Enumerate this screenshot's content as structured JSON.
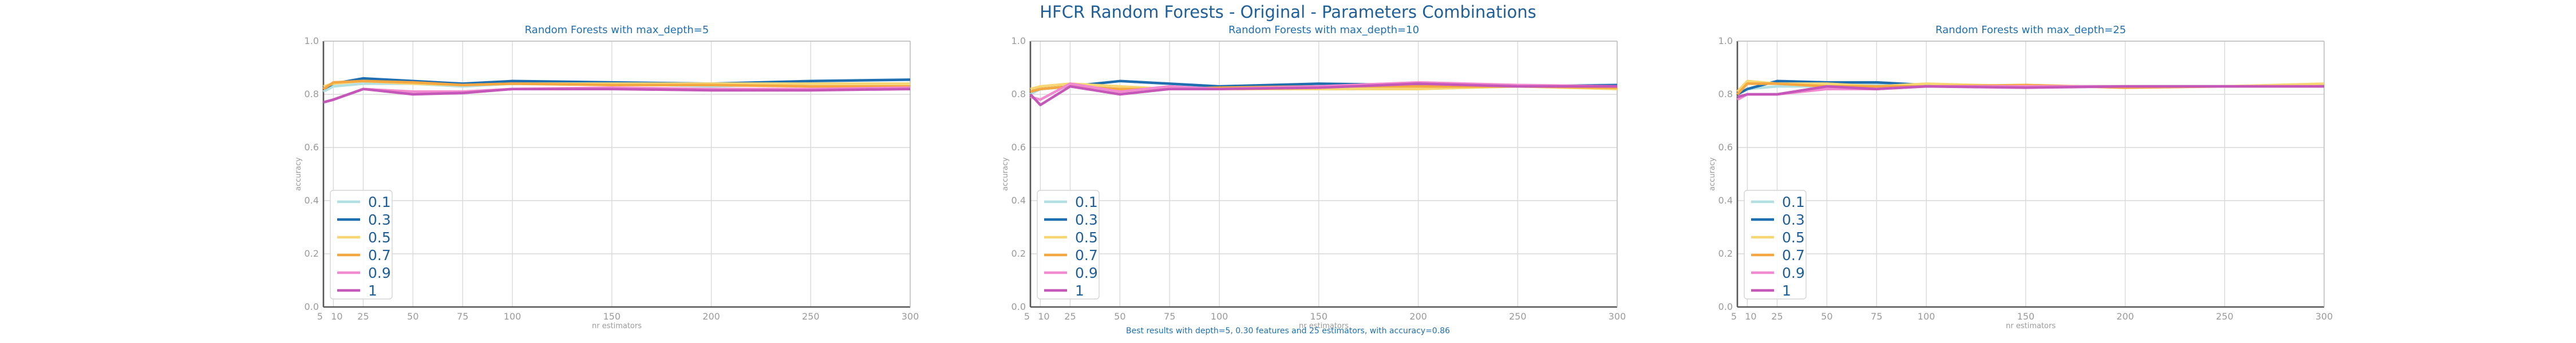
{
  "figure": {
    "title": "HFCR Random Forests - Original - Parameters Combinations",
    "footnote": "Best results with depth=5, 0.30 features and 25 estimators, with accuracy=0.86"
  },
  "colors": [
    "#b3dfe0",
    "#1f6fb0",
    "#f7d774",
    "#f5a742",
    "#f28ad0",
    "#c457b8"
  ],
  "chart_data": [
    {
      "type": "line",
      "title": "Random Forests with max_depth=5",
      "xlabel": "nr estimators",
      "ylabel": "accuracy",
      "x": [
        5,
        10,
        25,
        50,
        75,
        100,
        150,
        200,
        250,
        300
      ],
      "xticks": [
        "5",
        "10",
        "25",
        "50",
        "75",
        "100",
        "150",
        "200",
        "250",
        "300"
      ],
      "ylim": [
        0,
        1
      ],
      "yticks": [
        "0.0",
        "0.2",
        "0.4",
        "0.6",
        "0.8",
        "1.0"
      ],
      "grid": true,
      "legend": "bottom-left",
      "series": [
        {
          "name": "0.1",
          "values": [
            0.81,
            0.83,
            0.84,
            0.84,
            0.83,
            0.84,
            0.84,
            0.83,
            0.84,
            0.84
          ]
        },
        {
          "name": "0.3",
          "values": [
            0.82,
            0.84,
            0.86,
            0.85,
            0.84,
            0.85,
            0.845,
            0.84,
            0.85,
            0.855
          ]
        },
        {
          "name": "0.5",
          "values": [
            0.83,
            0.84,
            0.85,
            0.84,
            0.835,
            0.84,
            0.84,
            0.84,
            0.84,
            0.84
          ]
        },
        {
          "name": "0.7",
          "values": [
            0.82,
            0.845,
            0.85,
            0.845,
            0.835,
            0.84,
            0.835,
            0.835,
            0.83,
            0.83
          ]
        },
        {
          "name": "0.9",
          "values": [
            0.77,
            0.78,
            0.82,
            0.81,
            0.81,
            0.82,
            0.825,
            0.82,
            0.82,
            0.825
          ]
        },
        {
          "name": "1",
          "values": [
            0.77,
            0.78,
            0.82,
            0.8,
            0.805,
            0.82,
            0.82,
            0.815,
            0.815,
            0.82
          ]
        }
      ]
    },
    {
      "type": "line",
      "title": "Random Forests with max_depth=10",
      "xlabel": "nr estimators",
      "ylabel": "accuracy",
      "x": [
        5,
        10,
        25,
        50,
        75,
        100,
        150,
        200,
        250,
        300
      ],
      "xticks": [
        "5",
        "10",
        "25",
        "50",
        "75",
        "100",
        "150",
        "200",
        "250",
        "300"
      ],
      "ylim": [
        0,
        1
      ],
      "yticks": [
        "0.0",
        "0.2",
        "0.4",
        "0.6",
        "0.8",
        "1.0"
      ],
      "grid": true,
      "legend": "bottom-left",
      "series": [
        {
          "name": "0.1",
          "values": [
            0.8,
            0.82,
            0.83,
            0.82,
            0.82,
            0.83,
            0.83,
            0.84,
            0.83,
            0.83
          ]
        },
        {
          "name": "0.3",
          "values": [
            0.81,
            0.82,
            0.83,
            0.85,
            0.84,
            0.83,
            0.84,
            0.835,
            0.83,
            0.835
          ]
        },
        {
          "name": "0.5",
          "values": [
            0.82,
            0.83,
            0.84,
            0.83,
            0.82,
            0.82,
            0.82,
            0.82,
            0.83,
            0.82
          ]
        },
        {
          "name": "0.7",
          "values": [
            0.81,
            0.82,
            0.83,
            0.82,
            0.82,
            0.825,
            0.83,
            0.83,
            0.83,
            0.825
          ]
        },
        {
          "name": "0.9",
          "values": [
            0.79,
            0.78,
            0.84,
            0.81,
            0.83,
            0.82,
            0.83,
            0.845,
            0.835,
            0.83
          ]
        },
        {
          "name": "1",
          "values": [
            0.8,
            0.76,
            0.83,
            0.8,
            0.82,
            0.82,
            0.825,
            0.84,
            0.83,
            0.83
          ]
        }
      ]
    },
    {
      "type": "line",
      "title": "Random Forests with max_depth=25",
      "xlabel": "nr estimators",
      "ylabel": "accuracy",
      "x": [
        5,
        10,
        25,
        50,
        75,
        100,
        150,
        200,
        250,
        300
      ],
      "xticks": [
        "5",
        "10",
        "25",
        "50",
        "75",
        "100",
        "150",
        "200",
        "250",
        "300"
      ],
      "ylim": [
        0,
        1
      ],
      "yticks": [
        "0.0",
        "0.2",
        "0.4",
        "0.6",
        "0.8",
        "1.0"
      ],
      "grid": true,
      "legend": "bottom-left",
      "series": [
        {
          "name": "0.1",
          "values": [
            0.8,
            0.82,
            0.83,
            0.83,
            0.84,
            0.83,
            0.83,
            0.83,
            0.83,
            0.83
          ]
        },
        {
          "name": "0.3",
          "values": [
            0.8,
            0.82,
            0.85,
            0.845,
            0.845,
            0.835,
            0.83,
            0.83,
            0.83,
            0.835
          ]
        },
        {
          "name": "0.5",
          "values": [
            0.81,
            0.85,
            0.84,
            0.84,
            0.83,
            0.84,
            0.83,
            0.83,
            0.83,
            0.84
          ]
        },
        {
          "name": "0.7",
          "values": [
            0.8,
            0.84,
            0.84,
            0.83,
            0.83,
            0.83,
            0.835,
            0.825,
            0.83,
            0.83
          ]
        },
        {
          "name": "0.9",
          "values": [
            0.78,
            0.8,
            0.8,
            0.82,
            0.82,
            0.83,
            0.83,
            0.83,
            0.83,
            0.83
          ]
        },
        {
          "name": "1",
          "values": [
            0.79,
            0.8,
            0.8,
            0.83,
            0.82,
            0.83,
            0.825,
            0.83,
            0.83,
            0.83
          ]
        }
      ]
    }
  ]
}
